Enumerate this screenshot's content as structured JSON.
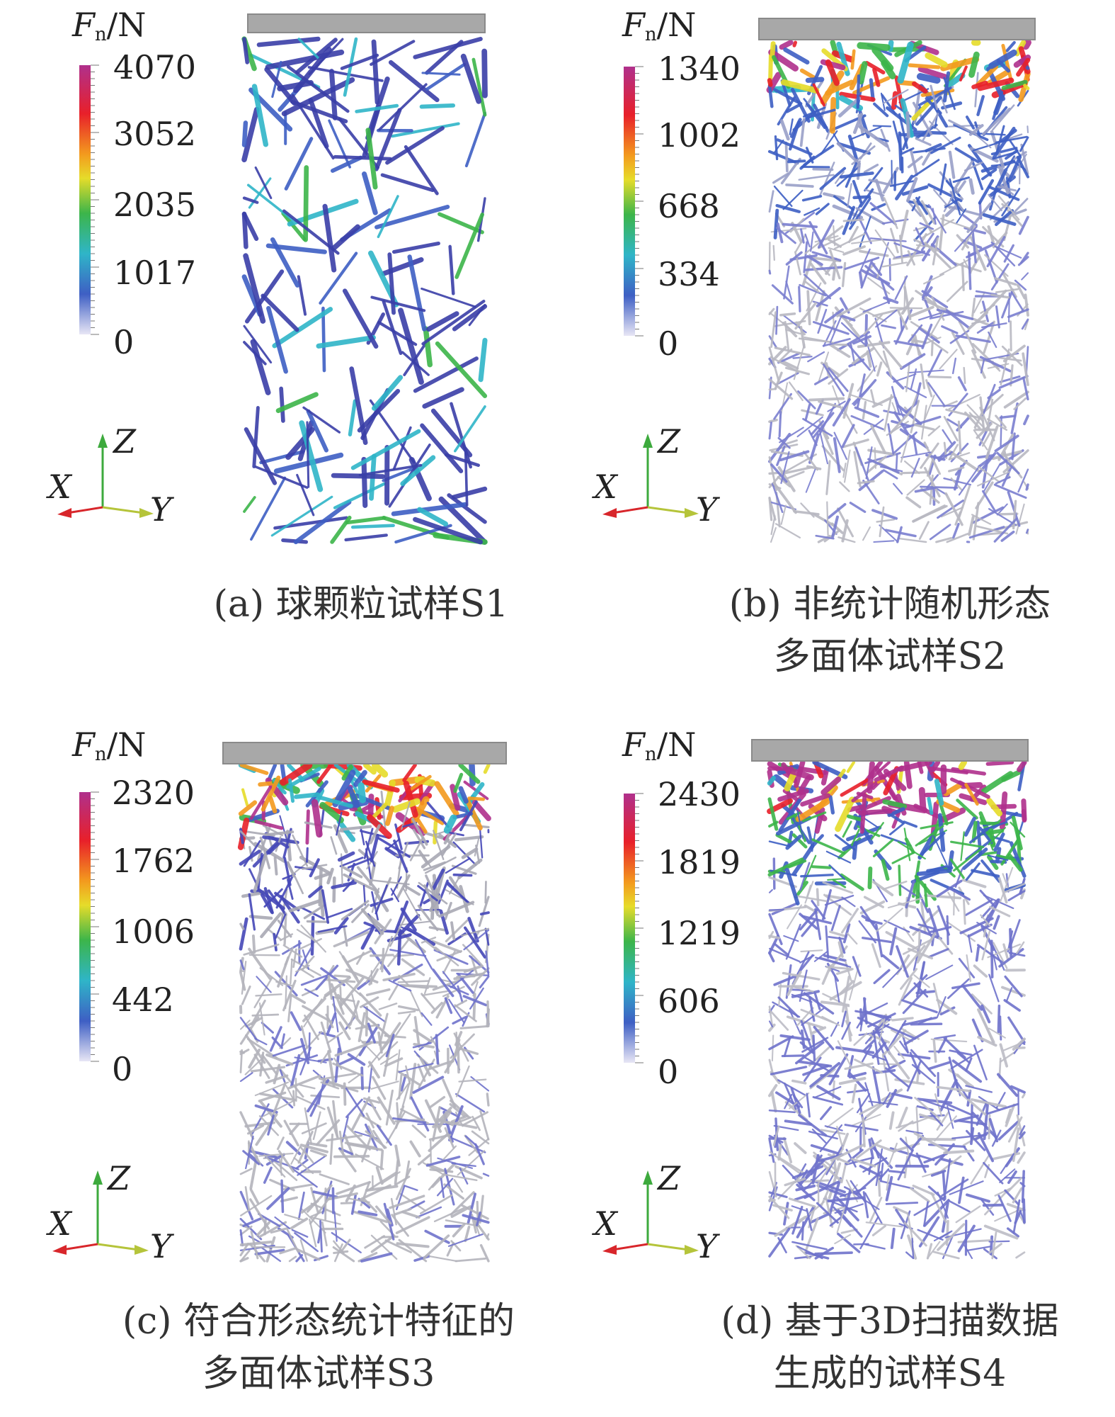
{
  "colorbar_label": {
    "symbol": "F",
    "subscript": "n",
    "unit": "/N"
  },
  "axes": {
    "z": "Z",
    "x": "X",
    "y": "Y"
  },
  "panels": [
    {
      "id": "a",
      "ticks": [
        "4070",
        "3052",
        "2035",
        "1017",
        "0"
      ],
      "caption": [
        "(a) 球颗粒试样S1"
      ],
      "style": "sparse"
    },
    {
      "id": "b",
      "ticks": [
        "1340",
        "1002",
        "668",
        "334",
        "0"
      ],
      "caption": [
        "(b) 非统计随机形态",
        "多面体试样S2"
      ],
      "style": "dense-top"
    },
    {
      "id": "c",
      "ticks": [
        "2320",
        "1762",
        "1006",
        "442",
        "0"
      ],
      "caption": [
        "(c) 符合形态统计特征的",
        "多面体试样S3"
      ],
      "style": "dense-gray"
    },
    {
      "id": "d",
      "ticks": [
        "2430",
        "1819",
        "1219",
        "606",
        "0"
      ],
      "caption": [
        "(d) 基于3D扫描数据",
        "生成的试样S4"
      ],
      "style": "dense-purple"
    }
  ],
  "colors": {
    "cb_top": "#b0308c",
    "cb_red": "#e8202a",
    "cb_orange": "#f39a1e",
    "cb_yellow": "#e6dc2a",
    "cb_green": "#3cb54a",
    "cb_cyan": "#2fb5c8",
    "cb_blue": "#3e5fc4",
    "cb_bottom": "#e8e6f5",
    "axis_z": "#3daa3d",
    "axis_y": "#b5c43a",
    "axis_x": "#d8262b",
    "plate": "#a8a8a8"
  }
}
